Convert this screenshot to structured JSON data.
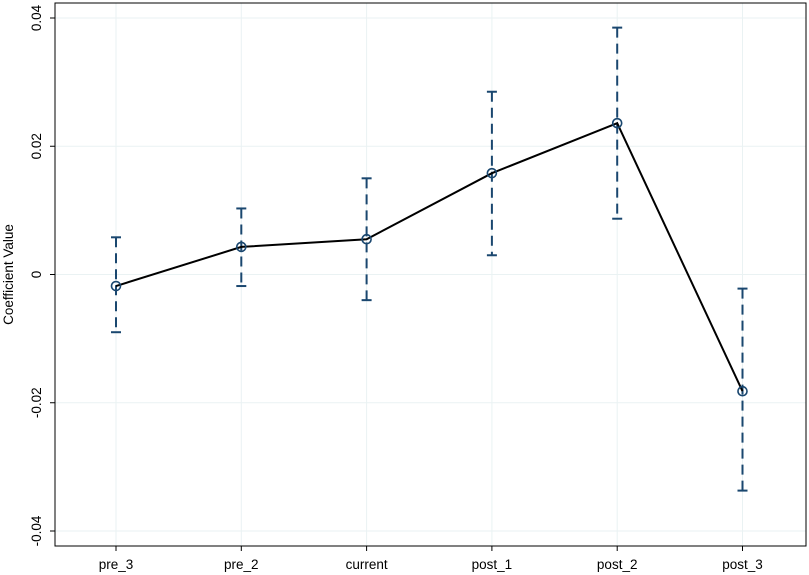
{
  "chart_data": {
    "type": "line",
    "title": "",
    "xlabel": "",
    "ylabel": "Coefficient Value",
    "categories": [
      "pre_3",
      "pre_2",
      "current",
      "post_1",
      "post_2",
      "post_3"
    ],
    "series": [
      {
        "values": [
          -0.0018,
          0.0043,
          0.0055,
          0.0158,
          0.0236,
          -0.0182
        ],
        "ci_lower": [
          -0.009,
          -0.0018,
          -0.004,
          0.003,
          0.0087,
          -0.0337
        ],
        "ci_upper": [
          0.0058,
          0.0103,
          0.015,
          0.0285,
          0.0385,
          -0.0022
        ]
      }
    ],
    "ylim": [
      -0.04,
      0.04
    ],
    "yticks": [
      -0.04,
      -0.02,
      0,
      0.02,
      0.04
    ],
    "ytick_labels": [
      "-0.04",
      "-0.02",
      "0",
      "0.02",
      "0.04"
    ],
    "grid": true,
    "legend": "none",
    "colors": {
      "line": "#000000",
      "marker": "#1a476f",
      "ci": "#1a476f",
      "grid": "#eaf2f3",
      "frame": "#000000"
    }
  }
}
